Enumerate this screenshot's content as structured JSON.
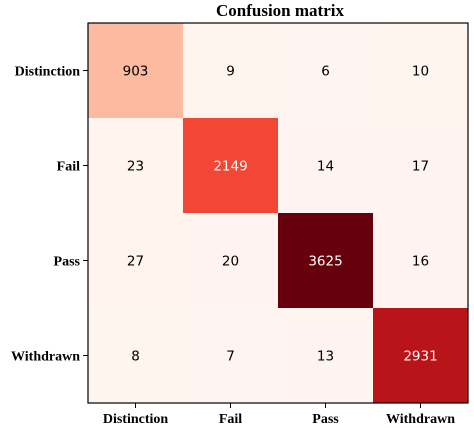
{
  "chart_data": {
    "type": "heatmap",
    "title": "Confusion matrix",
    "row_labels": [
      "Distinction",
      "Fail",
      "Pass",
      "Withdrawn"
    ],
    "col_labels": [
      "Distinction",
      "Fail",
      "Pass",
      "Withdrawn"
    ],
    "values": [
      [
        903,
        9,
        6,
        10
      ],
      [
        23,
        2149,
        14,
        17
      ],
      [
        27,
        20,
        3625,
        16
      ],
      [
        8,
        7,
        13,
        2931
      ]
    ],
    "colormap": "Reds",
    "value_range": [
      0,
      3625
    ],
    "grid": false,
    "colorbar": false
  }
}
